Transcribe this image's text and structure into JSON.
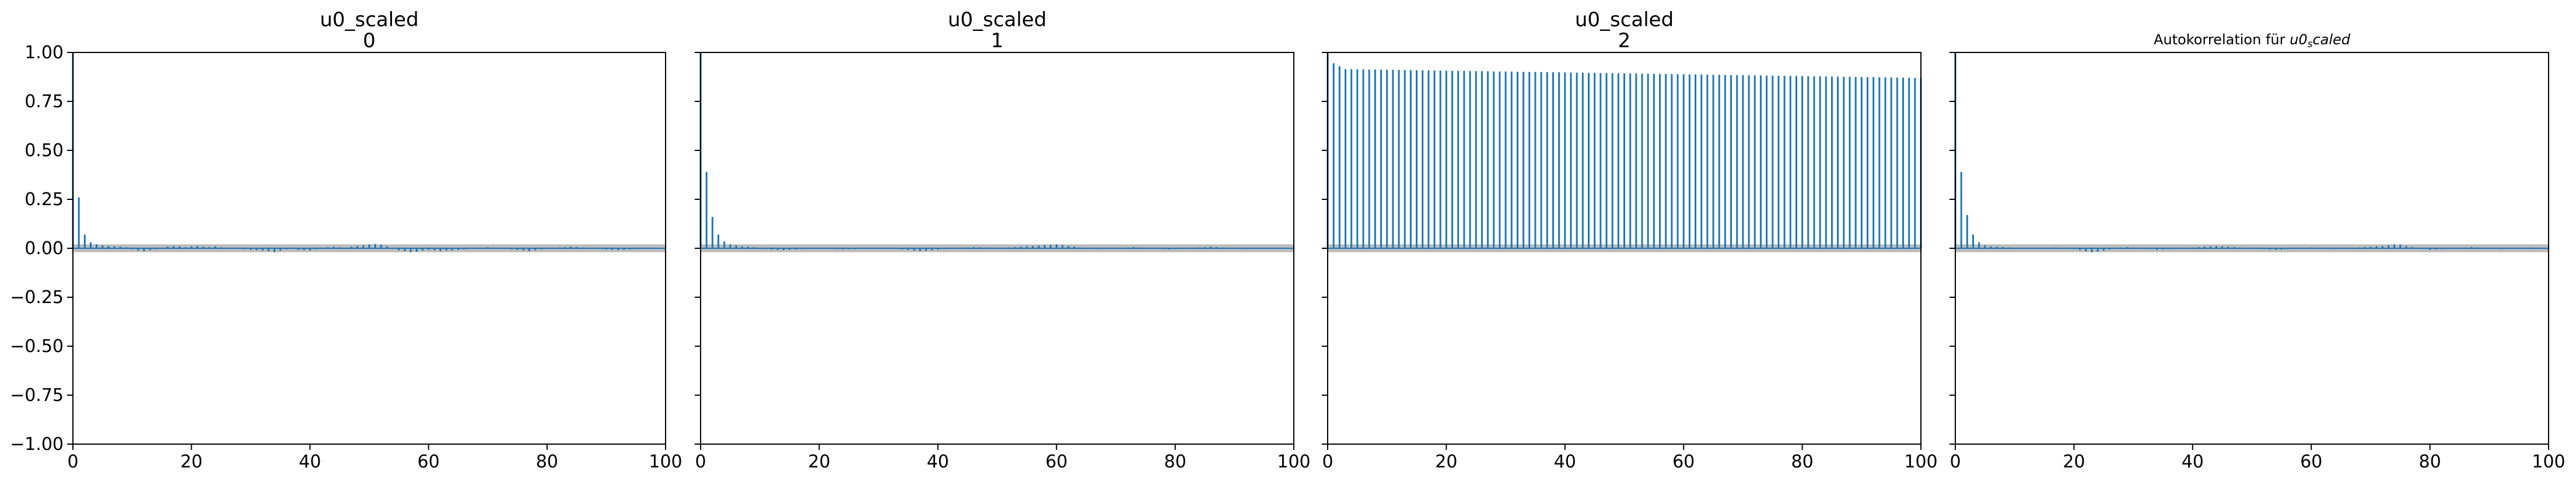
{
  "chart_data": [
    {
      "type": "bar",
      "title": "u0_scaled\n0",
      "xlim": [
        0,
        100
      ],
      "ylim": [
        -1.0,
        1.0
      ],
      "xticks": [
        0,
        20,
        40,
        60,
        80,
        100
      ],
      "yticks": [
        -1.0,
        -0.75,
        -0.5,
        -0.25,
        0.0,
        0.25,
        0.5,
        0.75,
        1.0
      ],
      "ytick_labels": [
        "−1.00",
        "−0.75",
        "−0.50",
        "−0.25",
        "0.00",
        "0.25",
        "0.50",
        "0.75",
        "1.00"
      ],
      "show_yticklabels": true,
      "confidence_band": 0.02,
      "lags": "0-100",
      "acf": [
        1.0,
        0.26,
        0.07,
        0.03,
        0.02,
        0.015,
        0.012,
        0.01,
        0.008,
        0.005,
        -0.005,
        -0.012,
        -0.015,
        -0.01,
        -0.005,
        0.0,
        0.008,
        0.012,
        0.01,
        0.006,
        0.01,
        0.012,
        0.008,
        0.006,
        0.01,
        0.005,
        0.002,
        0.0,
        -0.003,
        -0.005,
        -0.008,
        -0.01,
        -0.012,
        -0.015,
        -0.02,
        -0.012,
        -0.005,
        0.0,
        -0.008,
        -0.01,
        -0.012,
        -0.005,
        0.0,
        0.005,
        0.008,
        0.005,
        0.0,
        0.008,
        0.012,
        0.015,
        0.02,
        0.022,
        0.018,
        0.01,
        0.0,
        -0.01,
        -0.015,
        -0.02,
        -0.018,
        -0.012,
        -0.008,
        -0.01,
        -0.015,
        -0.012,
        -0.01,
        -0.008,
        -0.005,
        -0.002,
        0.0,
        0.003,
        0.005,
        0.002,
        0.0,
        -0.003,
        -0.005,
        -0.008,
        -0.012,
        -0.015,
        -0.01,
        -0.005,
        0.0,
        0.002,
        0.004,
        0.006,
        0.008,
        0.006,
        0.004,
        0.002,
        0.0,
        -0.003,
        -0.006,
        -0.008,
        -0.01,
        -0.008,
        -0.006,
        -0.004,
        -0.002,
        0.0,
        0.002,
        0.003,
        0.002
      ]
    },
    {
      "type": "bar",
      "title": "u0_scaled\n1",
      "xlim": [
        0,
        100
      ],
      "ylim": [
        -1.0,
        1.0
      ],
      "xticks": [
        0,
        20,
        40,
        60,
        80,
        100
      ],
      "show_yticklabels": false,
      "confidence_band": 0.02,
      "lags": "0-100",
      "acf": [
        1.0,
        0.39,
        0.16,
        0.07,
        0.035,
        0.02,
        0.015,
        0.01,
        0.008,
        0.005,
        0.0,
        -0.004,
        -0.006,
        -0.008,
        -0.01,
        -0.008,
        -0.006,
        -0.004,
        -0.002,
        0.0,
        0.002,
        0.0,
        -0.002,
        -0.004,
        -0.006,
        -0.005,
        -0.004,
        -0.003,
        -0.002,
        -0.001,
        0.0,
        0.002,
        0.0,
        -0.003,
        -0.006,
        -0.009,
        -0.012,
        -0.015,
        -0.013,
        -0.01,
        -0.007,
        -0.004,
        -0.002,
        0.0,
        0.002,
        0.004,
        0.006,
        0.005,
        0.004,
        0.002,
        0.0,
        0.002,
        0.004,
        0.006,
        0.008,
        0.01,
        0.012,
        0.014,
        0.016,
        0.018,
        0.02,
        0.016,
        0.012,
        0.008,
        0.004,
        0.0,
        -0.002,
        -0.004,
        -0.003,
        -0.002,
        0.0,
        0.002,
        0.004,
        0.006,
        0.004,
        0.002,
        0.0,
        -0.002,
        -0.004,
        -0.006,
        -0.004,
        -0.002,
        0.0,
        0.002,
        0.004,
        0.006,
        0.008,
        0.006,
        0.004,
        0.002,
        0.0,
        -0.002,
        -0.004,
        -0.003,
        -0.002,
        -0.001,
        0.0,
        0.001,
        0.002,
        0.001,
        0.0
      ]
    },
    {
      "type": "bar",
      "title": "u0_scaled\n2",
      "xlim": [
        0,
        100
      ],
      "ylim": [
        -1.0,
        1.0
      ],
      "xticks": [
        0,
        20,
        40,
        60,
        80,
        100
      ],
      "show_yticklabels": false,
      "confidence_band": 0.02,
      "lags": "0-100",
      "acf_start": 1.0,
      "acf_lag1": 0.945,
      "acf_lag2": 0.93,
      "acf_plateau_start": 0.915,
      "acf_plateau_end": 0.87
    },
    {
      "type": "bar",
      "title": "Autokorrelation für u0_scaled",
      "title_plain": "Autokorrelation für ",
      "title_math": "u0",
      "title_math_sub": "s",
      "title_math_rest": "caled",
      "xlim": [
        0,
        100
      ],
      "ylim": [
        -1.0,
        1.0
      ],
      "xticks": [
        0,
        20,
        40,
        60,
        80,
        100
      ],
      "show_yticklabels": false,
      "confidence_band": 0.02,
      "lags": "0-100",
      "acf": [
        1.0,
        0.39,
        0.17,
        0.07,
        0.03,
        0.015,
        0.01,
        0.008,
        0.006,
        0.004,
        0.002,
        0.0,
        -0.002,
        -0.003,
        -0.002,
        0.0,
        0.002,
        0.004,
        0.002,
        0.0,
        -0.004,
        -0.01,
        -0.016,
        -0.02,
        -0.018,
        -0.012,
        -0.006,
        0.0,
        0.004,
        0.006,
        0.004,
        0.002,
        0.0,
        -0.004,
        -0.008,
        -0.006,
        -0.004,
        -0.002,
        0.0,
        0.002,
        0.004,
        0.006,
        0.008,
        0.01,
        0.012,
        0.01,
        0.008,
        0.006,
        0.004,
        0.002,
        0.0,
        -0.002,
        -0.004,
        -0.006,
        -0.008,
        -0.006,
        -0.004,
        -0.002,
        0.0,
        0.002,
        0.004,
        0.002,
        0.0,
        -0.002,
        -0.004,
        -0.002,
        0.0,
        0.002,
        0.004,
        0.006,
        0.008,
        0.01,
        0.012,
        0.015,
        0.02,
        0.018,
        0.012,
        0.006,
        0.0,
        -0.004,
        -0.008,
        -0.006,
        -0.004,
        -0.002,
        0.0,
        0.002,
        0.004,
        0.006,
        0.004,
        0.002,
        0.0,
        -0.002,
        -0.004,
        -0.003,
        -0.002,
        0.0,
        0.002,
        0.004,
        0.003,
        0.002,
        0.001
      ]
    }
  ],
  "colors": {
    "stem": "#1f77b4",
    "band": "#b0b0b0",
    "axis": "#000000"
  }
}
